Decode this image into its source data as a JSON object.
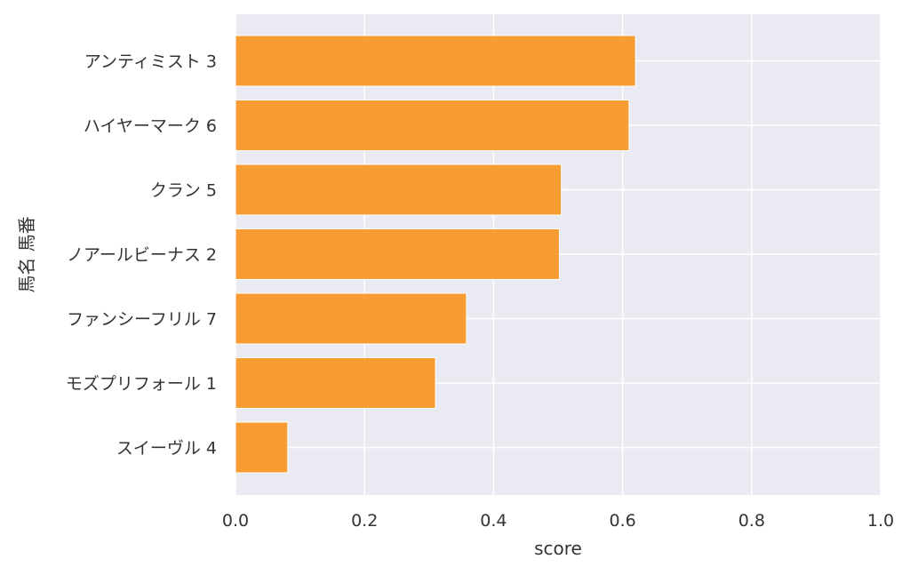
{
  "chart_data": {
    "type": "bar",
    "orientation": "horizontal",
    "title": "",
    "xlabel": "score",
    "ylabel": "馬名 馬番",
    "xlim": [
      0,
      1.0
    ],
    "x_ticks": [
      "0.0",
      "0.2",
      "0.4",
      "0.6",
      "0.8",
      "1.0"
    ],
    "grid": true,
    "legend": "none",
    "categories": [
      "アンティミスト 3",
      "ハイヤーマーク 6",
      "クラン 5",
      "ノアールビーナス 2",
      "ファンシーフリル 7",
      "モズプリフォール 1",
      "スイーヴル 4"
    ],
    "values": [
      0.62,
      0.61,
      0.505,
      0.502,
      0.358,
      0.31,
      0.081
    ],
    "colors": {
      "bar": "#f7931e",
      "background": "#eaeaf2",
      "grid": "#ffffff",
      "text": "#333333"
    }
  }
}
